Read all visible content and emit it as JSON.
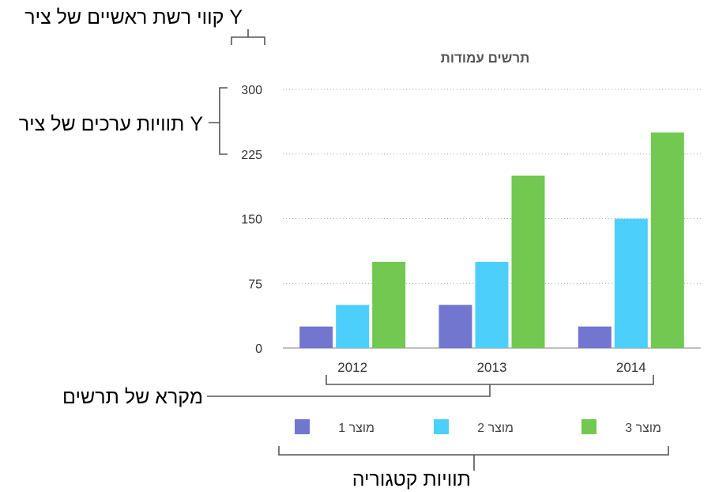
{
  "annotations": {
    "gridlines": "קווי רשת ראשיים של ציר Y",
    "value_labels": "תוויות ערכים של ציר Y",
    "legend": "מקרא של תרשים",
    "category_labels": "תוויות קטגוריה"
  },
  "chart_data": {
    "type": "bar",
    "title": "תרשים עמודות",
    "categories": [
      "2012",
      "2013",
      "2014"
    ],
    "series": [
      {
        "name": "מוצר 1",
        "values": [
          25,
          50,
          25
        ],
        "color": "#7276cf"
      },
      {
        "name": "מוצר 2",
        "values": [
          50,
          100,
          150
        ],
        "color": "#4ccffa"
      },
      {
        "name": "מוצר 3",
        "values": [
          100,
          200,
          250
        ],
        "color": "#72c850"
      }
    ],
    "y_ticks": [
      "0",
      "75",
      "150",
      "225",
      "300"
    ],
    "ylim": [
      0,
      300
    ],
    "grid": true,
    "legend_position": "bottom"
  }
}
